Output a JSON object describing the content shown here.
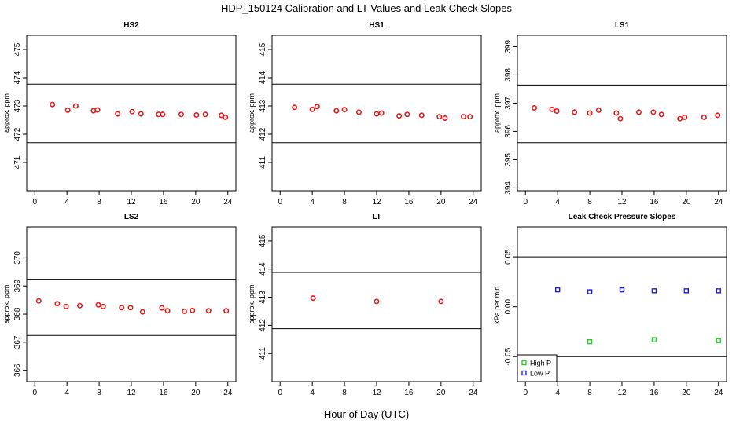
{
  "figure": {
    "title": "HDP_150124  Calibration and LT Values and Leak Check Slopes",
    "xlabel": "Hour of Day (UTC)"
  },
  "colors": {
    "cal": "#e41a1c",
    "high": "#1fcf1f",
    "low": "#1a1adf",
    "frame": "#000000"
  },
  "chart_data": [
    {
      "type": "scatter",
      "title": "HS2",
      "ylabel": "approx. ppm",
      "xlim": [
        -1,
        25
      ],
      "ylim": [
        470.0,
        475.5
      ],
      "xticks": [
        0,
        4,
        8,
        12,
        16,
        20,
        24
      ],
      "yticks": [
        471,
        472,
        473,
        474,
        475
      ],
      "hlines": [
        473.77,
        471.7
      ],
      "series": [
        {
          "marker": "circle",
          "color": "#e41a1c",
          "x": [
            2.2,
            4.1,
            5.1,
            7.3,
            7.8,
            10.3,
            12.1,
            13.2,
            15.4,
            15.9,
            18.2,
            20.1,
            21.2,
            23.2,
            23.7
          ],
          "y": [
            473.05,
            472.85,
            473.0,
            472.83,
            472.86,
            472.72,
            472.8,
            472.72,
            472.7,
            472.7,
            472.7,
            472.68,
            472.7,
            472.67,
            472.6
          ]
        }
      ]
    },
    {
      "type": "scatter",
      "title": "HS1",
      "ylabel": "approx. ppm",
      "xlim": [
        -1,
        25
      ],
      "ylim": [
        410.0,
        415.5
      ],
      "xticks": [
        0,
        4,
        8,
        12,
        16,
        20,
        24
      ],
      "yticks": [
        411,
        412,
        413,
        414,
        415
      ],
      "hlines": [
        413.77,
        411.7
      ],
      "series": [
        {
          "marker": "circle",
          "color": "#e41a1c",
          "x": [
            1.8,
            4.0,
            4.6,
            7.0,
            8.0,
            9.8,
            12.0,
            12.6,
            14.8,
            15.8,
            17.6,
            19.8,
            20.5,
            22.8,
            23.6
          ],
          "y": [
            412.95,
            412.88,
            412.98,
            412.83,
            412.87,
            412.78,
            412.72,
            412.75,
            412.65,
            412.7,
            412.67,
            412.62,
            412.57,
            412.62,
            412.62
          ]
        }
      ]
    },
    {
      "type": "scatter",
      "title": "LS1",
      "ylabel": "approx. ppm",
      "xlim": [
        -1,
        25
      ],
      "ylim": [
        393.9,
        399.4
      ],
      "xticks": [
        0,
        4,
        8,
        12,
        16,
        20,
        24
      ],
      "yticks": [
        394,
        395,
        396,
        397,
        398,
        399
      ],
      "hlines": [
        397.64,
        395.6
      ],
      "series": [
        {
          "marker": "circle",
          "color": "#e41a1c",
          "x": [
            1.1,
            3.3,
            3.9,
            6.1,
            8.0,
            9.1,
            11.3,
            11.8,
            14.1,
            15.9,
            16.9,
            19.2,
            19.8,
            22.2,
            23.9
          ],
          "y": [
            396.83,
            396.78,
            396.72,
            396.68,
            396.65,
            396.75,
            396.65,
            396.45,
            396.68,
            396.68,
            396.6,
            396.45,
            396.5,
            396.5,
            396.57
          ]
        }
      ]
    },
    {
      "type": "scatter",
      "title": "LS2",
      "ylabel": "approx. ppm",
      "xlim": [
        -1,
        25
      ],
      "ylim": [
        365.6,
        371.1
      ],
      "xticks": [
        0,
        4,
        8,
        12,
        16,
        20,
        24
      ],
      "yticks": [
        366,
        367,
        368,
        369,
        370
      ],
      "hlines": [
        369.24,
        367.24
      ],
      "series": [
        {
          "marker": "circle",
          "color": "#e41a1c",
          "x": [
            0.5,
            2.8,
            3.9,
            5.6,
            7.9,
            8.5,
            10.8,
            11.9,
            13.4,
            15.8,
            16.5,
            18.6,
            19.6,
            21.6,
            23.8
          ],
          "y": [
            368.47,
            368.37,
            368.27,
            368.3,
            368.33,
            368.27,
            368.23,
            368.23,
            368.08,
            368.22,
            368.12,
            368.1,
            368.13,
            368.12,
            368.12
          ]
        }
      ]
    },
    {
      "type": "scatter",
      "title": "LT",
      "ylabel": "approx. ppm",
      "xlim": [
        -1,
        25
      ],
      "ylim": [
        410.0,
        415.5
      ],
      "xticks": [
        0,
        4,
        8,
        12,
        16,
        20,
        24
      ],
      "yticks": [
        411,
        412,
        413,
        414,
        415
      ],
      "hlines": [
        413.88,
        411.88
      ],
      "series": [
        {
          "marker": "circle",
          "color": "#e41a1c",
          "x": [
            4.1,
            12.0,
            20.0
          ],
          "y": [
            412.97,
            412.85,
            412.85
          ]
        }
      ]
    },
    {
      "type": "scatter",
      "title": "Leak Check Pressure Slopes",
      "ylabel": "kPa per min.",
      "xlim": [
        -1,
        25
      ],
      "ylim": [
        -0.075,
        0.08
      ],
      "xticks": [
        0,
        4,
        8,
        12,
        16,
        20,
        24
      ],
      "yticks": [
        -0.05,
        0.0,
        0.05
      ],
      "ytick_labels": [
        "-0.05",
        "0.00",
        "0.05"
      ],
      "hlines": [
        0.05,
        -0.05
      ],
      "legend_placement": "bottom-left",
      "series": [
        {
          "name": "High P",
          "marker": "square",
          "color": "#1fcf1f",
          "x": [
            8,
            16,
            24
          ],
          "y": [
            -0.035,
            -0.033,
            -0.034
          ]
        },
        {
          "name": "Low P",
          "marker": "square",
          "color": "#1a1adf",
          "x": [
            4,
            8,
            12,
            16,
            20,
            24
          ],
          "y": [
            0.017,
            0.015,
            0.017,
            0.016,
            0.016,
            0.016
          ]
        }
      ]
    }
  ]
}
